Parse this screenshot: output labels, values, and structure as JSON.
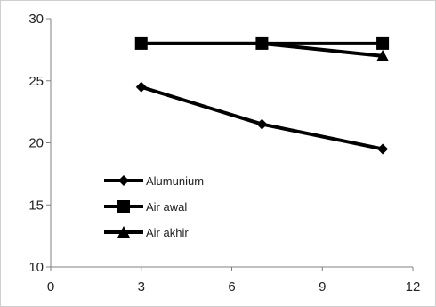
{
  "chart_data": {
    "type": "line",
    "title": "",
    "xlabel": "",
    "ylabel": "",
    "xlim": [
      0,
      12
    ],
    "ylim": [
      10,
      30
    ],
    "xticks": [
      0,
      3,
      6,
      9,
      12
    ],
    "yticks": [
      10,
      15,
      20,
      25,
      30
    ],
    "xtick_labels": [
      "0",
      "3",
      "6",
      "9",
      "12"
    ],
    "ytick_labels": [
      "10",
      "15",
      "20",
      "25",
      "30"
    ],
    "grid": false,
    "legend_position": "lower-left",
    "series": [
      {
        "name": "Alumunium",
        "marker": "diamond",
        "color": "#000000",
        "x": [
          3,
          7,
          11
        ],
        "y": [
          24.5,
          21.5,
          19.5
        ]
      },
      {
        "name": "Air awal",
        "marker": "square",
        "color": "#000000",
        "x": [
          3,
          7,
          11
        ],
        "y": [
          28,
          28,
          28
        ]
      },
      {
        "name": "Air akhir",
        "marker": "triangle",
        "color": "#000000",
        "x": [
          3,
          7,
          11
        ],
        "y": [
          28,
          28,
          27
        ]
      }
    ]
  }
}
